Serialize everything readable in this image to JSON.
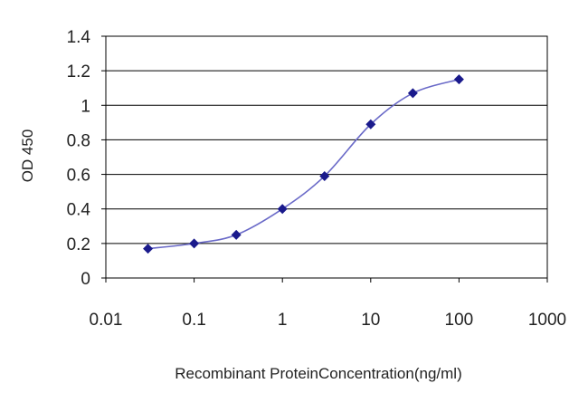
{
  "chart_data": {
    "type": "line",
    "title": "",
    "xlabel": "Recombinant ProteinConcentration(ng/ml)",
    "ylabel": "OD 450",
    "xscale": "log",
    "xlim": [
      0.01,
      1000
    ],
    "ylim": [
      0,
      1.4
    ],
    "x_tick_labels": [
      "0.01",
      "0.1",
      "1",
      "10",
      "100",
      "1000"
    ],
    "x_tick_values": [
      0.01,
      0.1,
      1,
      10,
      100,
      1000
    ],
    "y_tick_labels": [
      "0",
      "0.2",
      "0.4",
      "0.6",
      "0.8",
      "1",
      "1.2",
      "1.4"
    ],
    "y_tick_values": [
      0,
      0.2,
      0.4,
      0.6,
      0.8,
      1.0,
      1.2,
      1.4
    ],
    "grid": "horizontal",
    "legend": "none",
    "series": [
      {
        "x": [
          0.03,
          0.1,
          0.3,
          1,
          3,
          10,
          30,
          100
        ],
        "y": [
          0.17,
          0.2,
          0.25,
          0.4,
          0.59,
          0.89,
          1.07,
          1.15
        ],
        "color": "#1a1a8c",
        "marker": "diamond"
      }
    ]
  }
}
